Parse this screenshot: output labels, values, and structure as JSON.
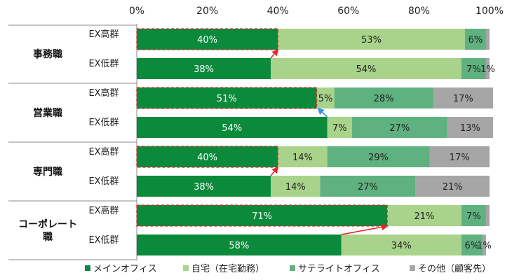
{
  "chart_data": {
    "type": "bar",
    "orientation": "horizontal",
    "stacked": true,
    "percent_scale": true,
    "title": "",
    "xlabel": "",
    "ylabel": "",
    "xlim": [
      0,
      100
    ],
    "x_ticks": [
      "0%",
      "20%",
      "40%",
      "60%",
      "80%",
      "100%"
    ],
    "x_axis_position": "top",
    "grid": false,
    "legend_position": "bottom",
    "categories": [
      {
        "job": "事務職",
        "group": "EX高群"
      },
      {
        "job": "事務職",
        "group": "EX低群"
      },
      {
        "job": "営業職",
        "group": "EX高群"
      },
      {
        "job": "営業職",
        "group": "EX低群"
      },
      {
        "job": "専門職",
        "group": "EX高群"
      },
      {
        "job": "専門職",
        "group": "EX低群"
      },
      {
        "job": "コーポレート職",
        "group": "EX高群"
      },
      {
        "job": "コーポレート職",
        "group": "EX低群"
      }
    ],
    "job_labels": [
      "事務職",
      "営業職",
      "専門職",
      "コーポレート\n職"
    ],
    "series": [
      {
        "name": "メインオフィス",
        "color": "#0a8a3a",
        "label_color": "#ffffff",
        "values": [
          40,
          38,
          51,
          54,
          40,
          38,
          71,
          58
        ],
        "labels": [
          "40%",
          "38%",
          "51%",
          "54%",
          "40%",
          "38%",
          "71%",
          "58%"
        ]
      },
      {
        "name": "自宅（在宅勤務）",
        "color": "#a9d38a",
        "label_color": "#222222",
        "values": [
          53,
          54,
          5,
          7,
          14,
          14,
          21,
          34
        ],
        "labels": [
          "53%",
          "54%",
          "5%",
          "7%",
          "14%",
          "14%",
          "21%",
          "34%"
        ]
      },
      {
        "name": "サテライトオフィス",
        "color": "#5fb17f",
        "label_color": "#222222",
        "values": [
          6,
          7,
          28,
          27,
          29,
          27,
          7,
          6
        ],
        "labels": [
          "6%",
          "7%",
          "28%",
          "27%",
          "29%",
          "27%",
          "7%",
          "6%"
        ]
      },
      {
        "name": "その他（顧客先）",
        "color": "#a6a6a6",
        "label_color": "#222222",
        "values": [
          1,
          1,
          17,
          13,
          17,
          21,
          1,
          1
        ],
        "labels": [
          "",
          "1%",
          "17%",
          "13%",
          "17%",
          "21%",
          "",
          "1%"
        ]
      }
    ],
    "highlight": {
      "series": "メインオフィス",
      "rows": [
        0,
        2,
        4,
        6
      ],
      "style": "red dashed outline",
      "arrow_colors": [
        "#e8262b",
        "#3a8ee6",
        "#e8262b",
        "#e8262b"
      ]
    }
  }
}
